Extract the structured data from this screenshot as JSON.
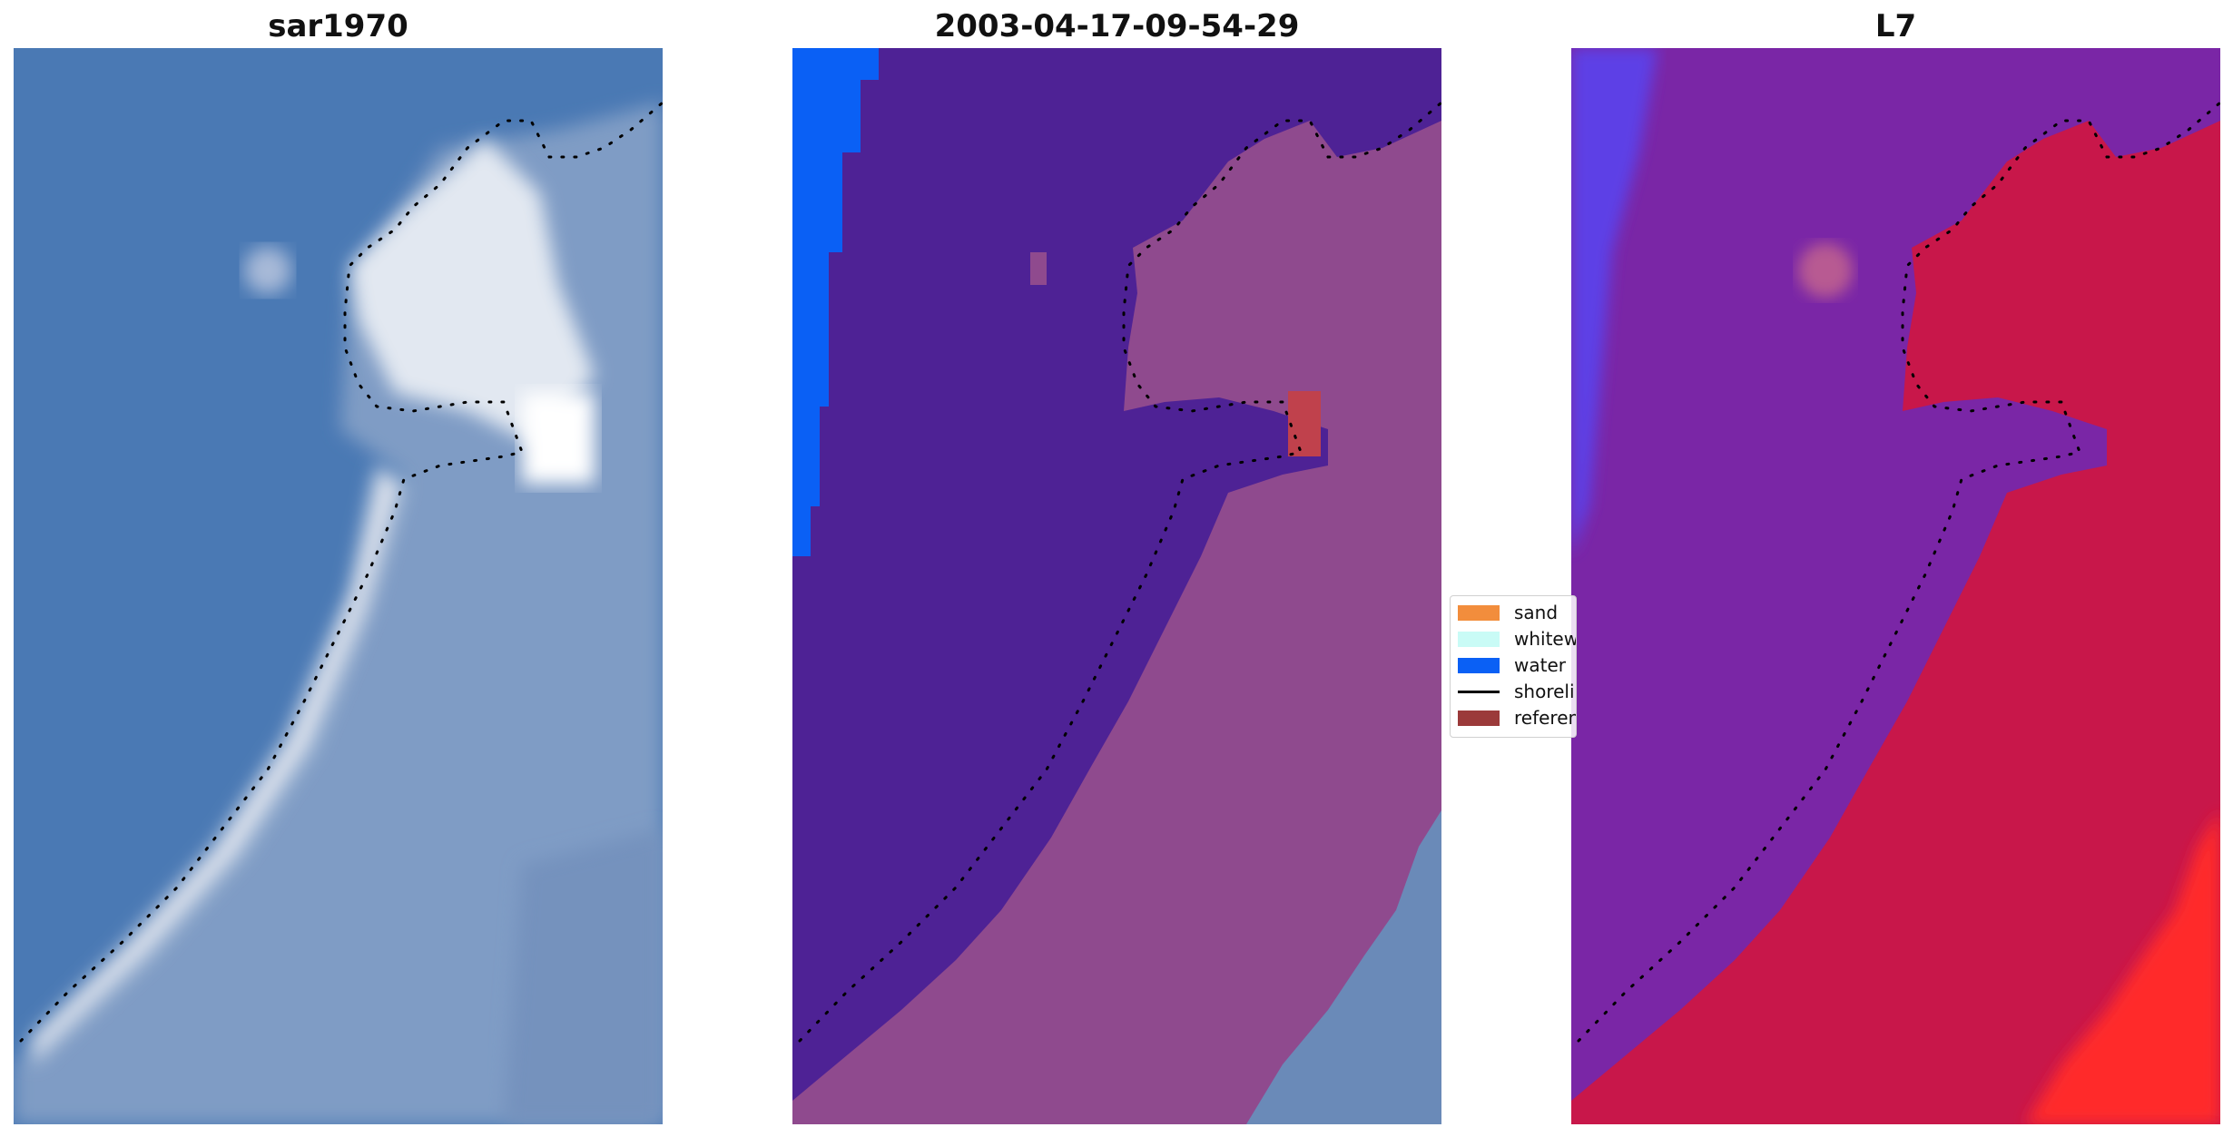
{
  "panels": [
    {
      "title": "sar1970",
      "render": "rgb-satellite"
    },
    {
      "title": "2003-04-17-09-54-29",
      "render": "classified-overlay"
    },
    {
      "title": "L7",
      "render": "false-color"
    }
  ],
  "legend": {
    "items": [
      {
        "label": "sand",
        "type": "patch",
        "color": "#f28d3c"
      },
      {
        "label": "whitewater",
        "type": "patch",
        "color": "#c9fbf6"
      },
      {
        "label": "water",
        "type": "patch",
        "color": "#0a60f5"
      },
      {
        "label": "shoreline",
        "type": "line",
        "color": "#000000"
      },
      {
        "label": "reference",
        "type": "patch",
        "color": "#9b3a3a"
      }
    ]
  },
  "colors": {
    "sea_rgb": "#4a79b4",
    "land_rgb": "#8aa3c6",
    "surf_rgb": "#e6ecf5",
    "sea_class": "#4e2295",
    "land_class": "#8f4a8e",
    "water_class": "#0a60f5",
    "sea_fc": "#7a26a6",
    "land_fc": "#c8174a",
    "bright_fc": "#ff2a2a"
  }
}
